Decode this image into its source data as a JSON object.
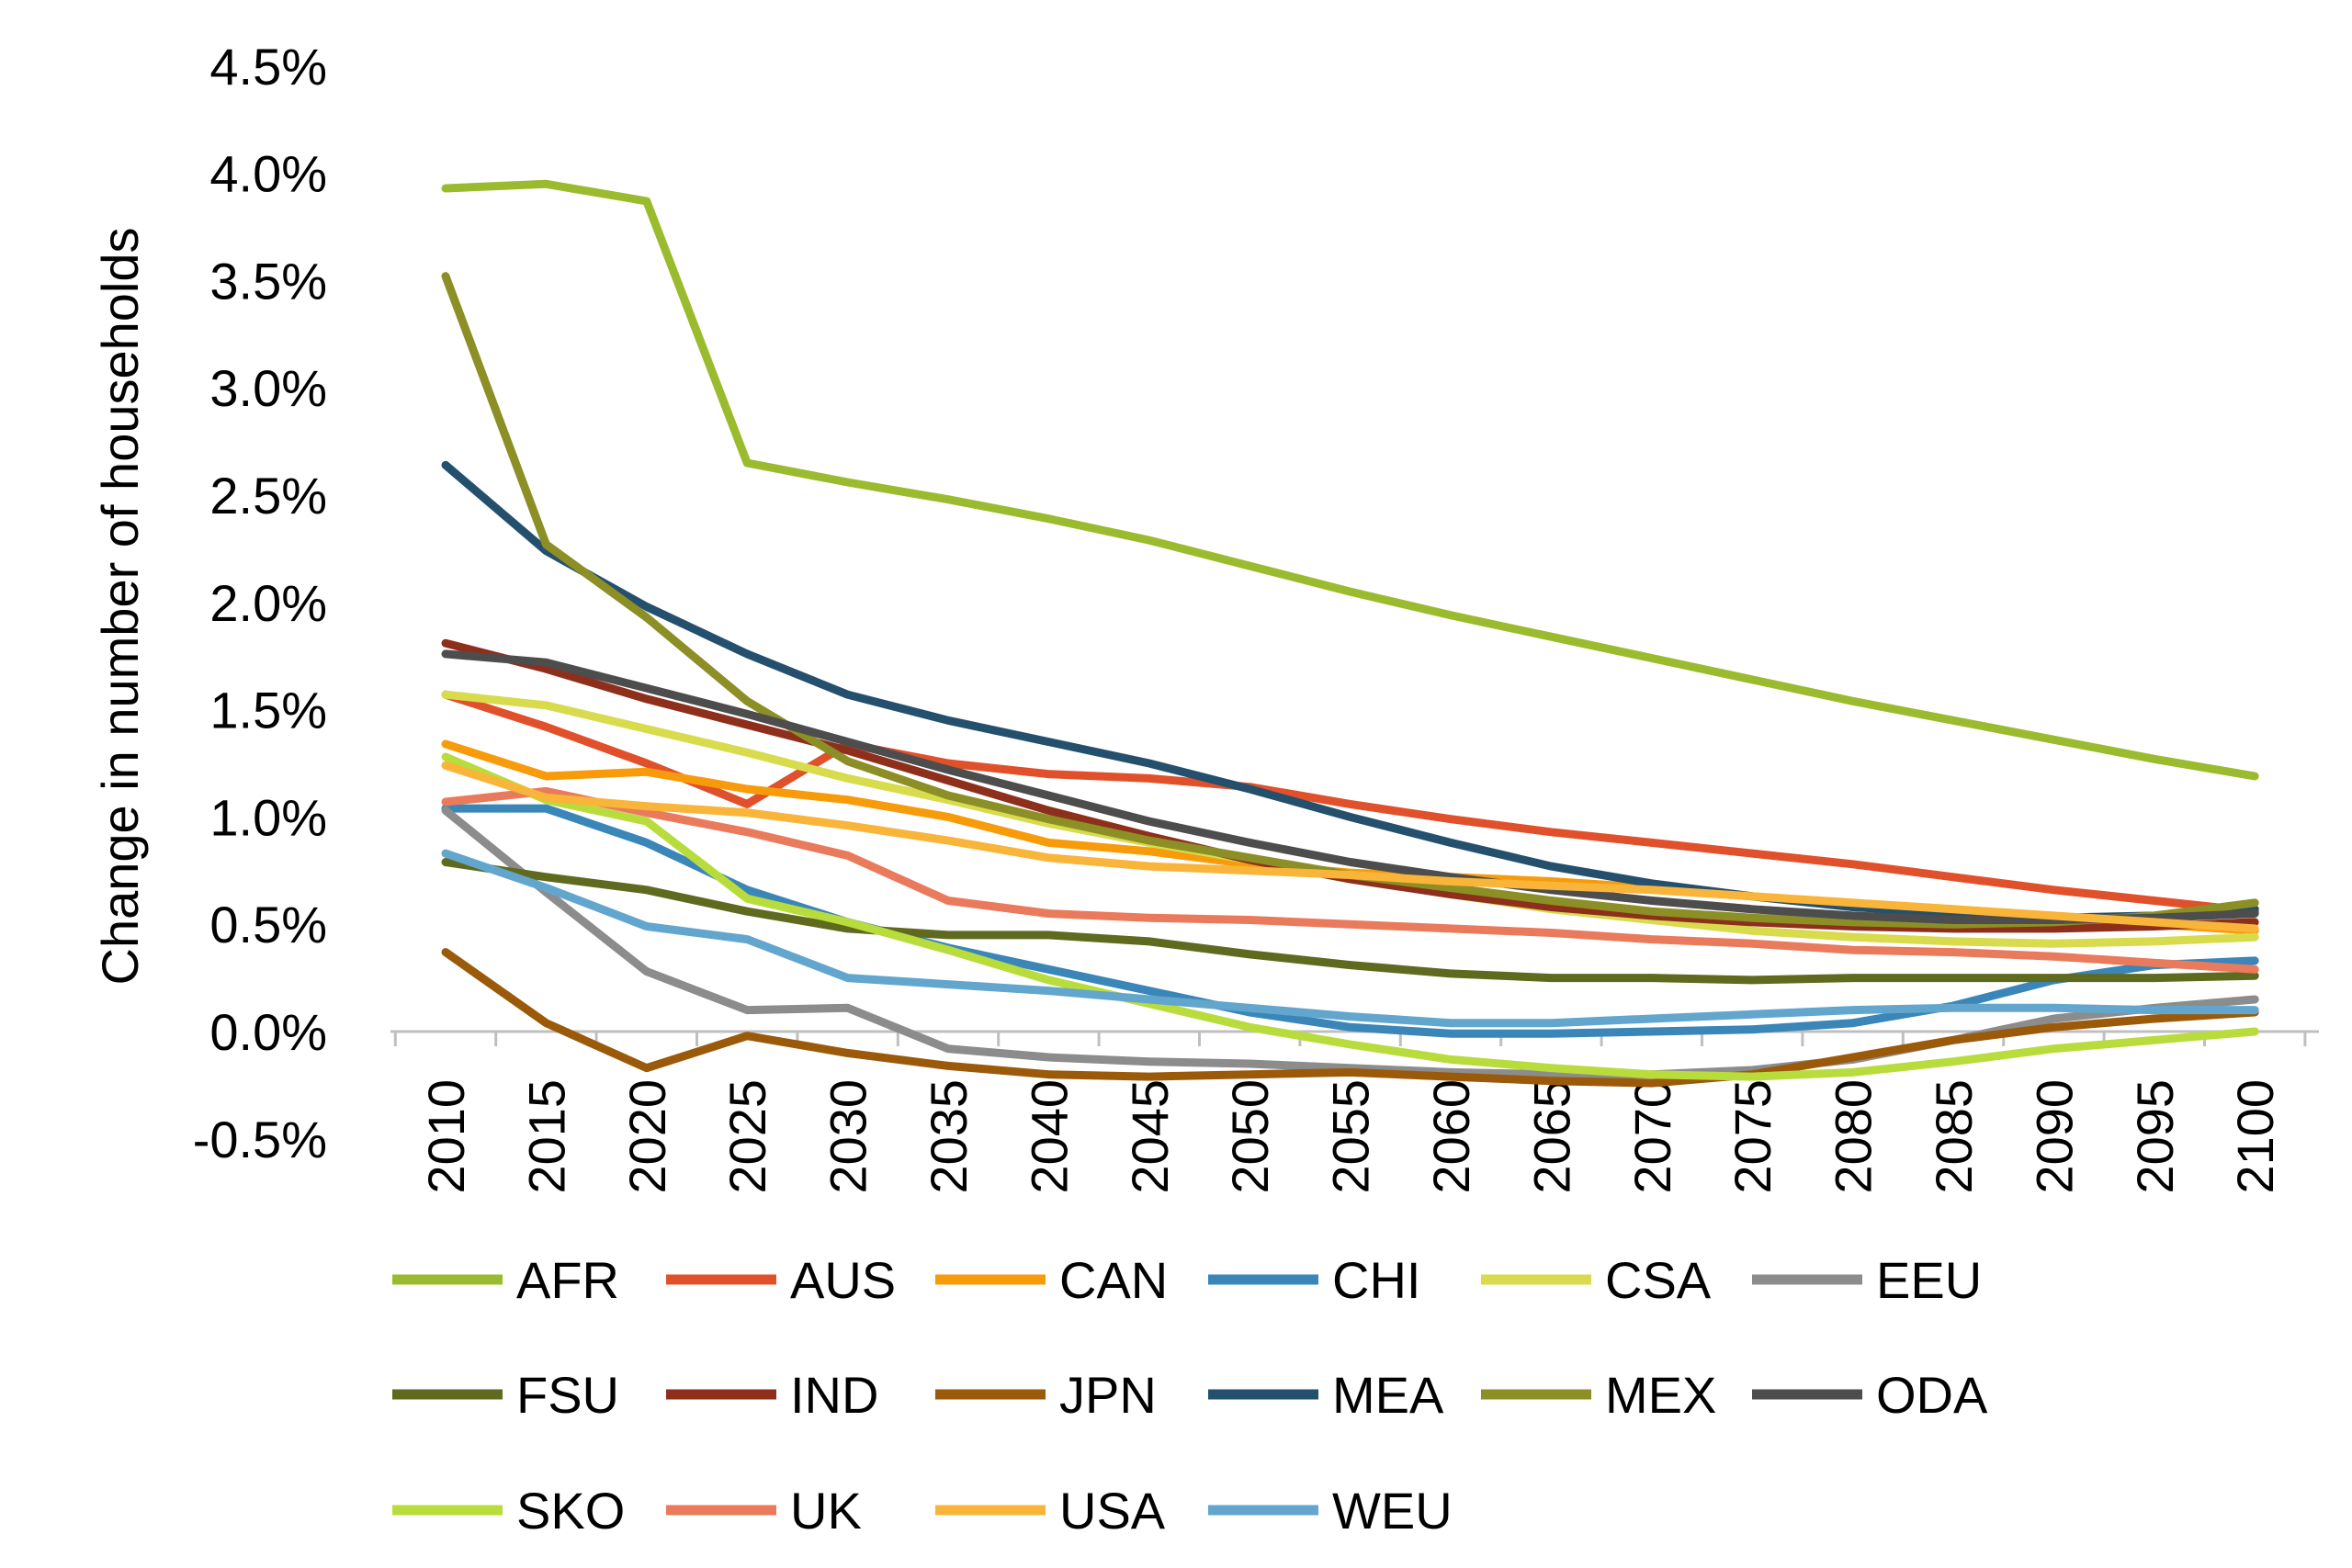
{
  "chart_data": {
    "type": "line",
    "title": "",
    "xlabel": "",
    "ylabel": "Change in number of households",
    "ylim": [
      -0.5,
      4.5
    ],
    "y_ticks": [
      "-0.5%",
      "0.0%",
      "0.5%",
      "1.0%",
      "1.5%",
      "2.0%",
      "2.5%",
      "3.0%",
      "3.5%",
      "4.0%",
      "4.5%"
    ],
    "categories": [
      "2010",
      "2015",
      "2020",
      "2025",
      "2030",
      "2035",
      "2040",
      "2045",
      "2050",
      "2055",
      "2060",
      "2065",
      "2070",
      "2075",
      "2080",
      "2085",
      "2090",
      "2095",
      "2100"
    ],
    "grid": false,
    "legend_position": "bottom",
    "series": [
      {
        "name": "AFR",
        "color": "#9BBB2F",
        "values": [
          3.93,
          3.95,
          3.87,
          2.65,
          2.56,
          2.48,
          2.39,
          2.29,
          2.17,
          2.05,
          1.94,
          1.84,
          1.74,
          1.64,
          1.54,
          1.45,
          1.36,
          1.27,
          1.19
        ]
      },
      {
        "name": "AUS",
        "color": "#E0512B",
        "values": [
          1.57,
          1.42,
          1.25,
          1.06,
          1.34,
          1.25,
          1.2,
          1.18,
          1.14,
          1.06,
          0.99,
          0.93,
          0.88,
          0.83,
          0.78,
          0.72,
          0.66,
          0.61,
          0.56
        ]
      },
      {
        "name": "CAN",
        "color": "#F79B0A",
        "values": [
          1.34,
          1.19,
          1.21,
          1.13,
          1.08,
          1.0,
          0.88,
          0.84,
          0.78,
          0.74,
          0.72,
          0.7,
          0.67,
          0.63,
          0.59,
          0.56,
          0.53,
          0.5,
          0.47
        ]
      },
      {
        "name": "CHI",
        "color": "#3A86B9",
        "values": [
          1.04,
          1.04,
          0.88,
          0.66,
          0.51,
          0.39,
          0.29,
          0.19,
          0.09,
          0.02,
          -0.01,
          -0.01,
          0.0,
          0.01,
          0.04,
          0.12,
          0.24,
          0.31,
          0.33
        ]
      },
      {
        "name": "CSA",
        "color": "#D7DB4C",
        "values": [
          1.57,
          1.52,
          1.41,
          1.3,
          1.18,
          1.08,
          0.97,
          0.88,
          0.8,
          0.72,
          0.64,
          0.57,
          0.52,
          0.47,
          0.44,
          0.42,
          0.41,
          0.42,
          0.44
        ]
      },
      {
        "name": "EEU",
        "color": "#8C8C8C",
        "values": [
          1.03,
          0.65,
          0.28,
          0.1,
          0.11,
          -0.08,
          -0.12,
          -0.14,
          -0.15,
          -0.17,
          -0.19,
          -0.2,
          -0.2,
          -0.18,
          -0.13,
          -0.04,
          0.06,
          0.11,
          0.15
        ]
      },
      {
        "name": "FSU",
        "color": "#5F6A1F",
        "values": [
          0.79,
          0.72,
          0.66,
          0.56,
          0.48,
          0.45,
          0.45,
          0.42,
          0.36,
          0.31,
          0.27,
          0.25,
          0.25,
          0.24,
          0.25,
          0.25,
          0.25,
          0.25,
          0.26
        ]
      },
      {
        "name": "IND",
        "color": "#8E2F1C",
        "values": [
          1.81,
          1.69,
          1.55,
          1.43,
          1.31,
          1.17,
          1.03,
          0.91,
          0.8,
          0.71,
          0.64,
          0.58,
          0.54,
          0.51,
          0.49,
          0.48,
          0.48,
          0.49,
          0.51
        ]
      },
      {
        "name": "JPN",
        "color": "#9B5A0A",
        "values": [
          0.37,
          0.04,
          -0.17,
          -0.02,
          -0.1,
          -0.16,
          -0.2,
          -0.21,
          -0.2,
          -0.19,
          -0.21,
          -0.23,
          -0.24,
          -0.2,
          -0.12,
          -0.04,
          0.02,
          0.06,
          0.09
        ]
      },
      {
        "name": "MEA",
        "color": "#24506E",
        "values": [
          2.64,
          2.24,
          1.98,
          1.76,
          1.57,
          1.45,
          1.35,
          1.25,
          1.13,
          1.0,
          0.88,
          0.77,
          0.69,
          0.63,
          0.58,
          0.55,
          0.53,
          0.54,
          0.57
        ]
      },
      {
        "name": "MEX",
        "color": "#8C8F25",
        "values": [
          3.52,
          2.27,
          1.93,
          1.54,
          1.26,
          1.1,
          0.99,
          0.89,
          0.81,
          0.73,
          0.67,
          0.61,
          0.56,
          0.53,
          0.51,
          0.5,
          0.51,
          0.54,
          0.6
        ]
      },
      {
        "name": "ODA",
        "color": "#4D4D4D",
        "values": [
          1.76,
          1.72,
          1.6,
          1.48,
          1.35,
          1.22,
          1.1,
          0.98,
          0.88,
          0.79,
          0.72,
          0.66,
          0.61,
          0.57,
          0.54,
          0.52,
          0.52,
          0.53,
          0.55
        ]
      },
      {
        "name": "SKO",
        "color": "#B8DC3C",
        "values": [
          1.28,
          1.08,
          0.98,
          0.62,
          0.51,
          0.38,
          0.24,
          0.13,
          0.02,
          -0.06,
          -0.13,
          -0.17,
          -0.2,
          -0.21,
          -0.19,
          -0.14,
          -0.08,
          -0.04,
          0.0
        ]
      },
      {
        "name": "UK",
        "color": "#EA7A5C",
        "values": [
          1.07,
          1.12,
          1.02,
          0.93,
          0.82,
          0.61,
          0.55,
          0.53,
          0.52,
          0.5,
          0.48,
          0.46,
          0.43,
          0.41,
          0.38,
          0.37,
          0.35,
          0.32,
          0.29
        ]
      },
      {
        "name": "USA",
        "color": "#F9B43A",
        "values": [
          1.24,
          1.09,
          1.05,
          1.02,
          0.96,
          0.89,
          0.81,
          0.77,
          0.75,
          0.73,
          0.7,
          0.68,
          0.66,
          0.63,
          0.6,
          0.57,
          0.54,
          0.51,
          0.48
        ]
      },
      {
        "name": "WEU",
        "color": "#62A6CE",
        "values": [
          0.83,
          0.67,
          0.49,
          0.43,
          0.25,
          0.22,
          0.19,
          0.15,
          0.11,
          0.07,
          0.04,
          0.04,
          0.06,
          0.08,
          0.1,
          0.11,
          0.11,
          0.1,
          0.1
        ]
      }
    ]
  }
}
